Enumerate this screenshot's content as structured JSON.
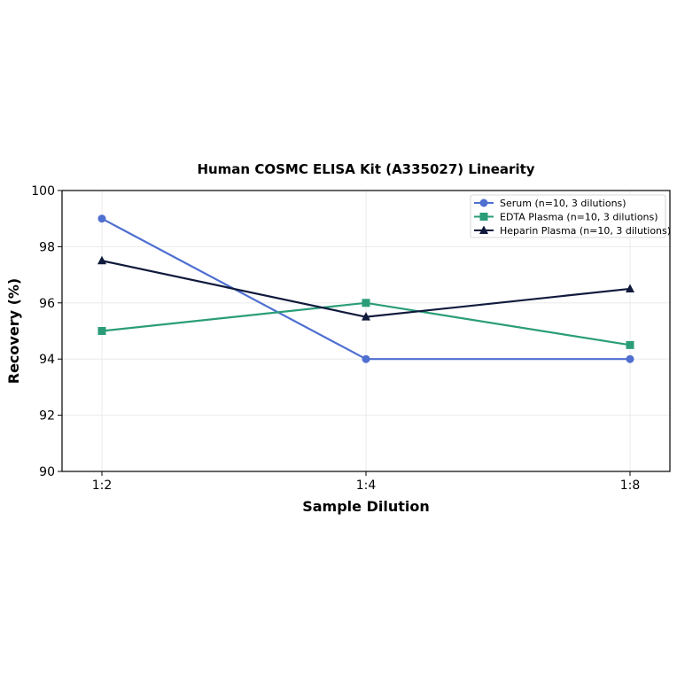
{
  "chart_data": {
    "type": "line",
    "title": "Human COSMC ELISA Kit (A335027) Linearity",
    "xlabel": "Sample Dilution",
    "ylabel": "Recovery (%)",
    "categories": [
      "1:2",
      "1:4",
      "1:8"
    ],
    "ylim": [
      90,
      100
    ],
    "yticks": [
      90,
      92,
      94,
      96,
      98,
      100
    ],
    "grid": true,
    "legend_position": "top-right",
    "series": [
      {
        "name": "Serum (n=10, 3 dilutions)",
        "values": [
          99,
          94,
          94
        ],
        "color": "#4f6fd1",
        "marker": "circle"
      },
      {
        "name": "EDTA Plasma (n=10, 3 dilutions)",
        "values": [
          95,
          96,
          94.5
        ],
        "color": "#2a9d78",
        "marker": "square"
      },
      {
        "name": "Heparin Plasma (n=10, 3 dilutions)",
        "values": [
          97.5,
          95.5,
          96.5
        ],
        "color": "#0f1a3c",
        "marker": "triangle"
      }
    ]
  }
}
